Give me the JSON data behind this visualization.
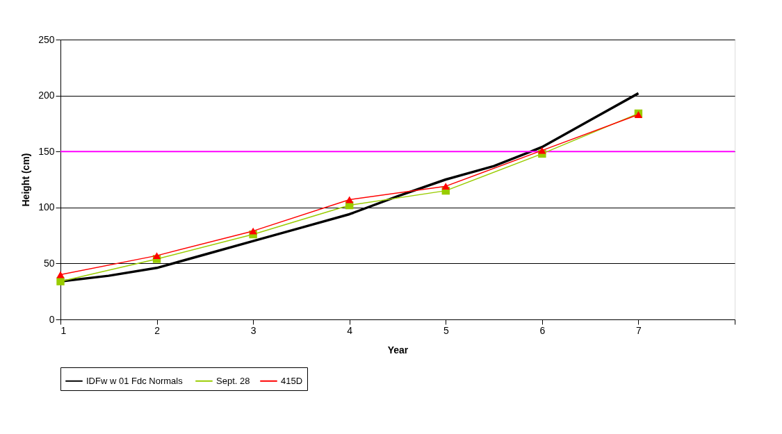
{
  "chart_data": {
    "type": "line",
    "xlabel": "Year",
    "ylabel": "Height (cm)",
    "xlim": [
      1,
      8
    ],
    "xticks": [
      1,
      2,
      3,
      4,
      5,
      6,
      7,
      {
        "value": 8,
        "label": null
      }
    ],
    "ylim": [
      0,
      250
    ],
    "yticks": [
      0,
      50,
      100,
      150,
      200,
      250
    ],
    "grid": "y",
    "legend": "bottom",
    "series": [
      {
        "name": "IDFw w  01 Fdc Normals",
        "color": "#000000",
        "marker": "none",
        "x": [
          1,
          1.5,
          2,
          2.5,
          3,
          3.5,
          4,
          4.5,
          5,
          5.5,
          6,
          6.5,
          7
        ],
        "values": [
          34,
          39,
          46,
          58,
          70,
          82,
          94,
          110,
          125,
          137,
          154,
          178,
          202
        ]
      },
      {
        "name": "Sept. 28",
        "color": "#99cc00",
        "marker": "square",
        "x": [
          1,
          2,
          3,
          4,
          5,
          6,
          7
        ],
        "values": [
          34,
          54,
          76,
          102,
          115,
          148,
          184
        ]
      },
      {
        "name": "415D",
        "color": "#ff0000",
        "marker": "triangle",
        "x": [
          1,
          2,
          3,
          4,
          5,
          6,
          7
        ],
        "values": [
          40,
          57,
          79,
          107,
          119,
          151,
          183
        ]
      }
    ],
    "ref_lines": [
      {
        "axis": "y",
        "value": 150,
        "label": null,
        "color": "#ff00ff"
      }
    ]
  }
}
